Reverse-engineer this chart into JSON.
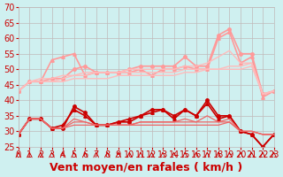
{
  "xlabel": "Vent moyen/en rafales ( km/h )",
  "ylabel": "",
  "bg_color": "#cff0f0",
  "grid_color": "#c0b8b8",
  "xlim": [
    0,
    23
  ],
  "ylim": [
    25,
    70
  ],
  "yticks": [
    25,
    30,
    35,
    40,
    45,
    50,
    55,
    60,
    65,
    70
  ],
  "xticks": [
    0,
    1,
    2,
    3,
    4,
    5,
    6,
    7,
    8,
    9,
    10,
    11,
    12,
    13,
    14,
    15,
    16,
    17,
    18,
    19,
    20,
    21,
    22,
    23
  ],
  "series": [
    {
      "y": [
        43,
        46,
        46,
        47,
        47,
        50,
        51,
        49,
        49,
        49,
        50,
        51,
        51,
        51,
        51,
        54,
        51,
        51,
        61,
        63,
        55,
        55,
        42,
        43
      ],
      "color": "#ff9999",
      "lw": 1.2,
      "marker": "o",
      "ms": 2.5
    },
    {
      "y": [
        43,
        46,
        46,
        53,
        54,
        55,
        48,
        49,
        49,
        49,
        49,
        50,
        48,
        50,
        50,
        51,
        50,
        50,
        60,
        62,
        52,
        54,
        41,
        43
      ],
      "color": "#ff9999",
      "lw": 1.2,
      "marker": "^",
      "ms": 2.5
    },
    {
      "y": [
        43,
        46,
        46,
        46,
        47,
        48,
        48,
        49,
        49,
        49,
        49,
        49,
        49,
        49,
        49,
        50,
        50,
        50,
        50,
        51,
        51,
        52,
        42,
        43
      ],
      "color": "#ffbbbb",
      "lw": 1.0,
      "marker": null,
      "ms": 0
    },
    {
      "y": [
        43,
        46,
        46,
        46,
        46,
        47,
        47,
        47,
        47,
        48,
        48,
        48,
        48,
        48,
        48,
        49,
        49,
        50,
        50,
        50,
        50,
        51,
        42,
        43
      ],
      "color": "#ffbbbb",
      "lw": 1.0,
      "marker": null,
      "ms": 0
    },
    {
      "y": [
        43,
        46,
        47,
        47,
        48,
        48,
        49,
        49,
        49,
        49,
        50,
        50,
        50,
        50,
        50,
        51,
        51,
        52,
        54,
        56,
        52,
        52,
        42,
        43
      ],
      "color": "#ffbbbb",
      "lw": 1.0,
      "marker": null,
      "ms": 0
    },
    {
      "y": [
        29,
        34,
        34,
        31,
        31,
        38,
        36,
        32,
        32,
        33,
        33,
        35,
        37,
        37,
        35,
        37,
        35,
        40,
        35,
        35,
        30,
        29,
        25,
        29
      ],
      "color": "#cc0000",
      "lw": 1.2,
      "marker": "o",
      "ms": 2.5
    },
    {
      "y": [
        29,
        34,
        34,
        31,
        32,
        37,
        35,
        32,
        32,
        33,
        34,
        35,
        36,
        37,
        34,
        37,
        35,
        39,
        34,
        35,
        30,
        29,
        25,
        29
      ],
      "color": "#cc0000",
      "lw": 1.2,
      "marker": "^",
      "ms": 2.5
    },
    {
      "y": [
        29,
        34,
        34,
        31,
        31,
        33,
        33,
        32,
        32,
        32,
        32,
        33,
        33,
        33,
        33,
        33,
        33,
        33,
        33,
        33,
        30,
        30,
        29,
        29
      ],
      "color": "#ee6666",
      "lw": 0.9,
      "marker": null,
      "ms": 0
    },
    {
      "y": [
        29,
        34,
        34,
        31,
        31,
        32,
        32,
        32,
        32,
        32,
        32,
        32,
        32,
        32,
        32,
        32,
        32,
        32,
        32,
        33,
        30,
        30,
        29,
        29
      ],
      "color": "#ee6666",
      "lw": 0.9,
      "marker": null,
      "ms": 0
    },
    {
      "y": [
        29,
        34,
        34,
        31,
        31,
        34,
        33,
        32,
        32,
        32,
        32,
        33,
        33,
        33,
        33,
        34,
        33,
        35,
        33,
        34,
        30,
        30,
        29,
        29
      ],
      "color": "#ee6666",
      "lw": 0.9,
      "marker": null,
      "ms": 0
    }
  ],
  "xlabel_color": "#cc0000",
  "tick_color": "#cc0000",
  "xlabel_fontsize": 9,
  "tick_fontsize": 7,
  "ytick_fontsize": 7
}
